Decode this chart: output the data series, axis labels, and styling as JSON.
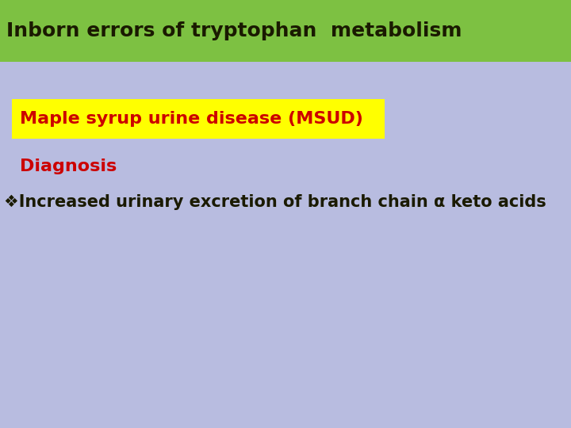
{
  "title": "Inborn errors of tryptophan  metabolism",
  "title_bg": "#7dc142",
  "title_color": "#1a1a00",
  "title_fontsize": 18,
  "subtitle": "Maple syrup urine disease (MSUD)",
  "subtitle_bg": "#ffff00",
  "subtitle_color": "#cc0000",
  "subtitle_fontsize": 16,
  "section_label": "Diagnosis",
  "section_color": "#cc0000",
  "section_fontsize": 16,
  "bullet_text": "❖Increased urinary excretion of branch chain α keto acids",
  "bullet_color": "#1a1a00",
  "bullet_fontsize": 15,
  "bg_color": "#b8bce0"
}
